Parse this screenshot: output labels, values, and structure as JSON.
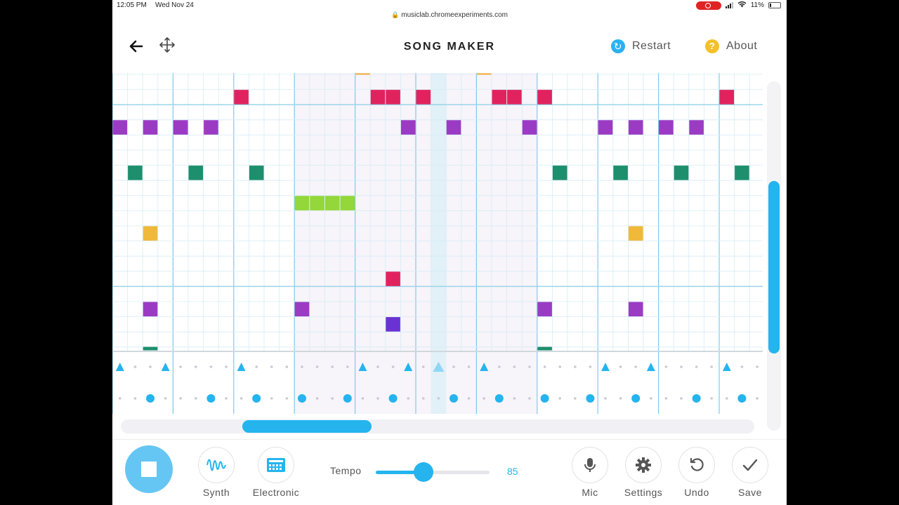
{
  "status_bar": {
    "time": "12:05 PM",
    "date": "Wed Nov 24",
    "battery": "11%",
    "recording_color": "#e02424"
  },
  "url_bar": {
    "url": "musiclab.chromeexperiments.com"
  },
  "header": {
    "back_icon": "arrow-left-icon",
    "move_icon": "move-arrows-icon",
    "title": "SONG MAKER",
    "restart_label": "Restart",
    "about_label": "About",
    "about_icon_glyph": "?"
  },
  "colors": {
    "accent": "#25b4ee",
    "highlight_column": "#e2f0f7",
    "bar_section": "#f7f4fa"
  },
  "grid": {
    "columns": 43,
    "rows": 18,
    "notes": [
      {
        "col": 16,
        "row": -1,
        "color": "#f2a93b"
      },
      {
        "col": 24,
        "row": -1,
        "color": "#f2a93b"
      },
      {
        "col": 8,
        "row": 1,
        "color": "#e0235e"
      },
      {
        "col": 17,
        "row": 1,
        "color": "#e0235e"
      },
      {
        "col": 18,
        "row": 1,
        "color": "#e0235e"
      },
      {
        "col": 20,
        "row": 1,
        "color": "#e0235e"
      },
      {
        "col": 25,
        "row": 1,
        "color": "#e0235e"
      },
      {
        "col": 26,
        "row": 1,
        "color": "#e0235e"
      },
      {
        "col": 28,
        "row": 1,
        "color": "#e0235e"
      },
      {
        "col": 40,
        "row": 1,
        "color": "#e0235e"
      },
      {
        "col": 0,
        "row": 3,
        "color": "#9b3bc4"
      },
      {
        "col": 2,
        "row": 3,
        "color": "#9b3bc4"
      },
      {
        "col": 4,
        "row": 3,
        "color": "#9b3bc4"
      },
      {
        "col": 6,
        "row": 3,
        "color": "#9b3bc4"
      },
      {
        "col": 19,
        "row": 3,
        "color": "#9b3bc4"
      },
      {
        "col": 22,
        "row": 3,
        "color": "#9b3bc4"
      },
      {
        "col": 27,
        "row": 3,
        "color": "#9b3bc4"
      },
      {
        "col": 32,
        "row": 3,
        "color": "#9b3bc4"
      },
      {
        "col": 34,
        "row": 3,
        "color": "#9b3bc4"
      },
      {
        "col": 36,
        "row": 3,
        "color": "#9b3bc4"
      },
      {
        "col": 38,
        "row": 3,
        "color": "#9b3bc4"
      },
      {
        "col": 1,
        "row": 6,
        "color": "#1d8f6d"
      },
      {
        "col": 5,
        "row": 6,
        "color": "#1d8f6d"
      },
      {
        "col": 9,
        "row": 6,
        "color": "#1d8f6d"
      },
      {
        "col": 29,
        "row": 6,
        "color": "#1d8f6d"
      },
      {
        "col": 33,
        "row": 6,
        "color": "#1d8f6d"
      },
      {
        "col": 37,
        "row": 6,
        "color": "#1d8f6d"
      },
      {
        "col": 41,
        "row": 6,
        "color": "#1d8f6d"
      },
      {
        "col": 12,
        "row": 8,
        "color": "#93d73a"
      },
      {
        "col": 13,
        "row": 8,
        "color": "#93d73a"
      },
      {
        "col": 14,
        "row": 8,
        "color": "#93d73a"
      },
      {
        "col": 15,
        "row": 8,
        "color": "#93d73a"
      },
      {
        "col": 2,
        "row": 10,
        "color": "#f0b93a"
      },
      {
        "col": 34,
        "row": 10,
        "color": "#f0b93a"
      },
      {
        "col": 18,
        "row": 13,
        "color": "#e0235e"
      },
      {
        "col": 2,
        "row": 15,
        "color": "#9b3bc4"
      },
      {
        "col": 12,
        "row": 15,
        "color": "#9b3bc4"
      },
      {
        "col": 28,
        "row": 15,
        "color": "#9b3bc4"
      },
      {
        "col": 34,
        "row": 15,
        "color": "#9b3bc4"
      },
      {
        "col": 18,
        "row": 16,
        "color": "#6a32d4"
      },
      {
        "col": 2,
        "row": 18,
        "color": "#1d8f6d"
      },
      {
        "col": 28,
        "row": 18,
        "color": "#1d8f6d"
      }
    ],
    "triangles": [
      0,
      3,
      8,
      16,
      19,
      24,
      32,
      35,
      40
    ],
    "circles": [
      2,
      6,
      9,
      12,
      15,
      18,
      22,
      25,
      28,
      31,
      34,
      38,
      41
    ],
    "playhead_col": 21
  },
  "bottom": {
    "synth_label": "Synth",
    "electronic_label": "Electronic",
    "tempo_label": "Tempo",
    "tempo_value": "85",
    "tempo_fraction": 0.42,
    "mic_label": "Mic",
    "settings_label": "Settings",
    "undo_label": "Undo",
    "save_label": "Save"
  }
}
